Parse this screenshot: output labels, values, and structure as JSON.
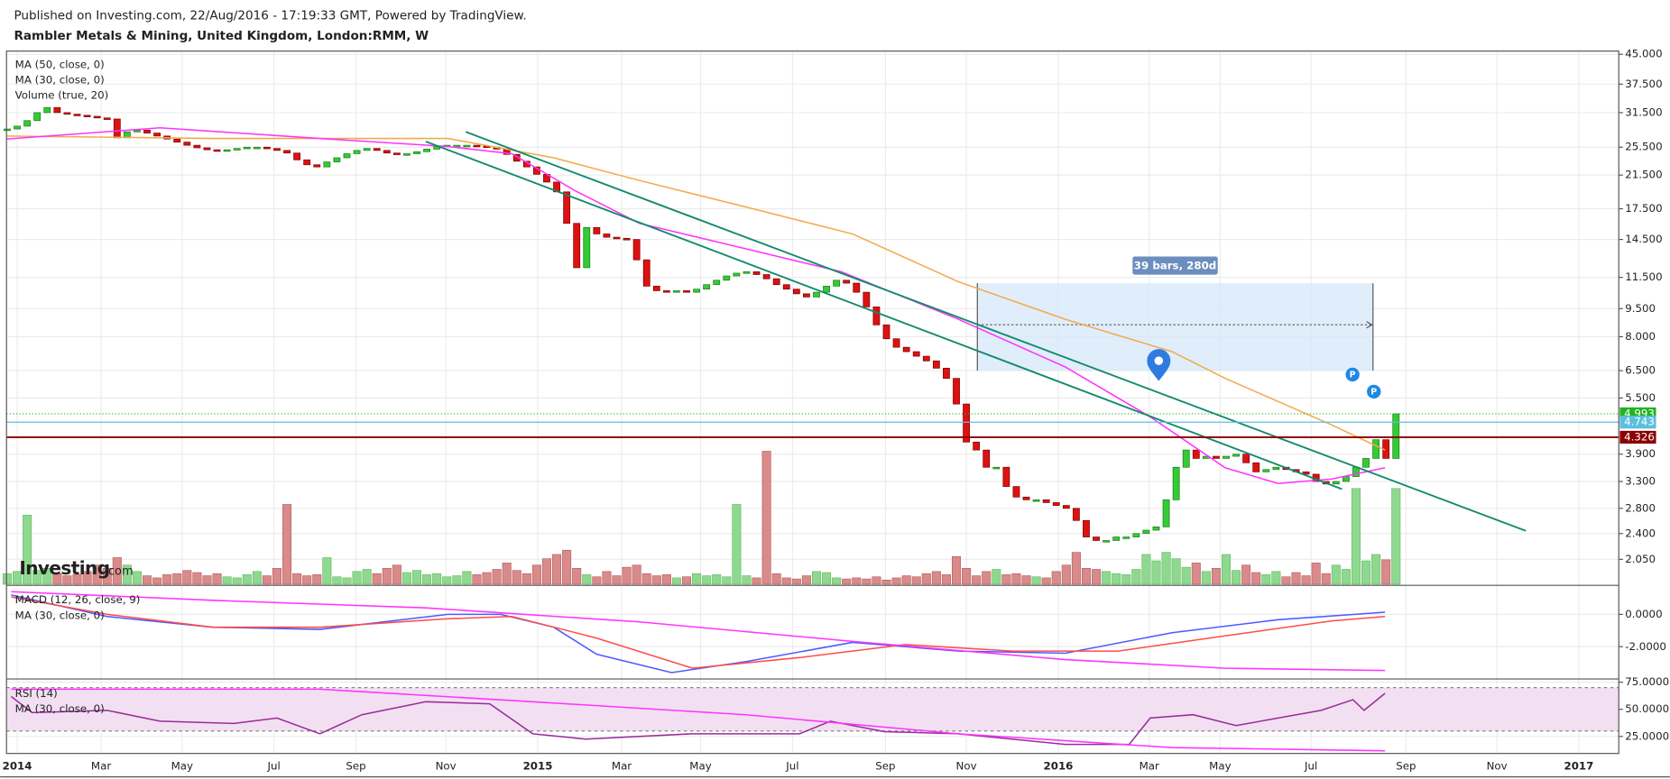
{
  "header": {
    "published": "Published on Investing.com, 22/Aug/2016 - 17:19:33 GMT, Powered by TradingView.",
    "title": "Rambler Metals & Mining, United Kingdom, London:RMM, W",
    "watermark": [
      "Investing",
      ".com"
    ]
  },
  "chart_data": [
    {
      "type": "candlestick",
      "xlim": [
        -1.07,
        160.3
      ],
      "xticks": [
        {
          "value": 0,
          "label": "2014"
        },
        {
          "value": 8.4,
          "label": "Mar"
        },
        {
          "value": 16.5,
          "label": "May"
        },
        {
          "value": 25.7,
          "label": "Jul"
        },
        {
          "value": 33.9,
          "label": "Sep"
        },
        {
          "value": 42.9,
          "label": "Nov"
        },
        {
          "value": 52.1,
          "label": "2015"
        },
        {
          "value": 60.5,
          "label": "Mar"
        },
        {
          "value": 68.4,
          "label": "May"
        },
        {
          "value": 77.6,
          "label": "Jul"
        },
        {
          "value": 86.9,
          "label": "Sep"
        },
        {
          "value": 95,
          "label": "Nov"
        },
        {
          "value": 104.2,
          "label": "2016"
        },
        {
          "value": 113.3,
          "label": "Mar"
        },
        {
          "value": 120.4,
          "label": "May"
        },
        {
          "value": 129.5,
          "label": "Jul"
        },
        {
          "value": 139,
          "label": "Sep"
        },
        {
          "value": 148.1,
          "label": "Nov"
        },
        {
          "value": 156.3,
          "label": "2017"
        }
      ],
      "ylim": [
        1.76,
        45.9
      ],
      "log": true,
      "grid": true,
      "yticks": [
        {
          "value": 45,
          "label": "45.000"
        },
        {
          "value": 37.5,
          "label": "37.500"
        },
        {
          "value": 31.5,
          "label": "31.500"
        },
        {
          "value": 25.5,
          "label": "25.500"
        },
        {
          "value": 21.5,
          "label": "21.500"
        },
        {
          "value": 17.5,
          "label": "17.500"
        },
        {
          "value": 14.5,
          "label": "14.500"
        },
        {
          "value": 11.5,
          "label": "11.500"
        },
        {
          "value": 9.5,
          "label": "9.500"
        },
        {
          "value": 8,
          "label": "8.000"
        },
        {
          "value": 6.5,
          "label": "6.500"
        },
        {
          "value": 5.5,
          "label": "5.500"
        },
        {
          "value": 3.9,
          "label": "3.900"
        },
        {
          "value": 3.3,
          "label": "3.300"
        },
        {
          "value": 2.8,
          "label": "2.800"
        },
        {
          "value": 2.4,
          "label": "2.400"
        },
        {
          "value": 2.05,
          "label": "2.050"
        }
      ],
      "x": [
        -1,
        0,
        1,
        2,
        3,
        4,
        5,
        6,
        7,
        8,
        9,
        10,
        11,
        12,
        13,
        14,
        15,
        16,
        17,
        18,
        19,
        20,
        21,
        22,
        23,
        24,
        25,
        26,
        27,
        28,
        29,
        30,
        31,
        32,
        33,
        34,
        35,
        36,
        37,
        38,
        39,
        40,
        41,
        42,
        43,
        44,
        45,
        46,
        47,
        48,
        49,
        50,
        51,
        52,
        53,
        54,
        55,
        56,
        57,
        58,
        59,
        60,
        61,
        62,
        63,
        64,
        65,
        66,
        67,
        68,
        69,
        70,
        71,
        72,
        73,
        74,
        75,
        76,
        77,
        78,
        79,
        80,
        81,
        82,
        83,
        84,
        85,
        86,
        87,
        88,
        89,
        90,
        91,
        92,
        93,
        94,
        95,
        96,
        97,
        98,
        99,
        100,
        101,
        102,
        103,
        104,
        105,
        106,
        107,
        108,
        109,
        110,
        111,
        112,
        113,
        114,
        115,
        116,
        117,
        118,
        119,
        120,
        121,
        122,
        123,
        124,
        125,
        126,
        127,
        128,
        129,
        130,
        131,
        132,
        133,
        134,
        135,
        136,
        137,
        138
      ],
      "close": [
        28.5,
        29,
        30,
        31.5,
        32.5,
        31.5,
        31.2,
        31,
        30.8,
        30.5,
        30.3,
        27,
        28,
        28.3,
        27.8,
        27.3,
        26.8,
        26.3,
        25.8,
        25.4,
        25.1,
        25,
        25.1,
        25.3,
        25.5,
        25.5,
        25.3,
        25,
        24.6,
        23.6,
        22.9,
        22.6,
        23.3,
        23.9,
        24.5,
        25,
        25.3,
        25,
        24.6,
        24.4,
        24.5,
        24.8,
        25.2,
        25.6,
        25.8,
        25.8,
        25.8,
        25.7,
        25.5,
        25.2,
        24.4,
        23.4,
        22.6,
        21.6,
        20.6,
        19.4,
        16,
        12.2,
        15.6,
        15,
        14.7,
        14.6,
        14.5,
        12.8,
        10.9,
        10.6,
        10.5,
        10.6,
        10.5,
        10.7,
        11,
        11.3,
        11.6,
        11.8,
        11.9,
        11.7,
        11.4,
        11,
        10.7,
        10.4,
        10.2,
        10.5,
        10.9,
        11.3,
        11.1,
        10.5,
        9.6,
        8.6,
        7.9,
        7.5,
        7.3,
        7.1,
        6.9,
        6.6,
        6.2,
        5.3,
        4.2,
        4,
        3.6,
        3.6,
        3.2,
        3,
        2.95,
        2.95,
        2.9,
        2.85,
        2.8,
        2.6,
        2.35,
        2.3,
        2.3,
        2.35,
        2.35,
        2.4,
        2.45,
        2.5,
        2.95,
        3.6,
        4,
        3.8,
        3.85,
        3.8,
        3.85,
        3.9,
        3.7,
        3.5,
        3.55,
        3.6,
        3.55,
        3.5,
        3.45,
        3.3,
        3.25,
        3.3,
        3.4,
        3.6,
        3.8,
        4.26,
        3.8,
        4.99
      ],
      "volume": [
        1,
        1.2,
        6.5,
        1.3,
        1.5,
        1,
        0.8,
        0.9,
        1.2,
        1.8,
        1.5,
        2.5,
        1.8,
        1.2,
        0.8,
        0.6,
        0.9,
        1,
        1.3,
        1.1,
        0.8,
        1,
        0.7,
        0.6,
        0.9,
        1.2,
        0.8,
        1.5,
        7.5,
        1,
        0.8,
        0.9,
        2.5,
        0.7,
        0.6,
        1.2,
        1.4,
        1,
        1.5,
        1.8,
        1.1,
        1.3,
        0.9,
        1,
        0.7,
        0.8,
        1.2,
        0.9,
        1.1,
        1.4,
        2,
        1.3,
        1,
        1.8,
        2.4,
        2.8,
        3.2,
        1.5,
        0.9,
        0.7,
        1.2,
        0.8,
        1.6,
        1.8,
        1,
        0.8,
        0.9,
        0.6,
        0.7,
        1,
        0.8,
        0.9,
        0.7,
        7.5,
        0.8,
        0.6,
        12.5,
        1,
        0.6,
        0.5,
        0.8,
        1.2,
        1.1,
        0.6,
        0.5,
        0.6,
        0.5,
        0.7,
        0.4,
        0.6,
        0.8,
        0.7,
        1,
        1.2,
        0.9,
        2.6,
        1.5,
        0.8,
        1.2,
        1.4,
        0.9,
        1,
        0.8,
        0.7,
        0.6,
        1.2,
        1.8,
        3,
        1.5,
        1.4,
        1.2,
        1,
        0.9,
        1.4,
        2.8,
        2.2,
        3,
        2.4,
        1.6,
        2,
        1.2,
        1.5,
        2.8,
        1.3,
        1.8,
        1.1,
        0.9,
        1.2,
        0.7,
        1.1,
        0.8,
        2,
        1,
        1.8,
        1.4,
        9,
        2.2,
        2.8,
        2.3,
        9
      ],
      "up_color": "#33cc33",
      "down_color": "#dd1111",
      "volume_up_color": "#8fd88f",
      "volume_down_color": "#d98a8a",
      "volume_label": "Volume (true, 20)",
      "series": [
        {
          "name": "MA (50, close, 0)",
          "color": "#f3a94b",
          "x": [
            -1.1,
            19.6,
            43.1,
            53.7,
            62.3,
            72.9,
            83.6,
            94.2,
            104.9,
            115.6,
            120.9,
            131.6,
            136.9
          ],
          "values": [
            27.3,
            26.9,
            26.9,
            23.9,
            20.8,
            17.7,
            15,
            11.2,
            8.9,
            7.3,
            6.2,
            4.66,
            4
          ]
        },
        {
          "name": "MA (30, close, 0)",
          "color": "#ff33ff",
          "x": [
            -1.1,
            14.3,
            30.3,
            43.1,
            49.5,
            55.9,
            62.3,
            72.9,
            82.5,
            94.2,
            104.9,
            113.4,
            120.9,
            126.2,
            131.6,
            136.9
          ],
          "values": [
            26.8,
            28.7,
            26.9,
            25.6,
            24.5,
            19.5,
            16,
            13.7,
            11.9,
            8.9,
            6.65,
            4.9,
            3.59,
            3.26,
            3.35,
            3.59
          ]
        }
      ],
      "trendlines": [
        {
          "color": "#138a6e",
          "x": [
            40.9,
            132.6
          ],
          "y": [
            26.4,
            3.15
          ]
        },
        {
          "color": "#138a6e",
          "x": [
            44.9,
            151
          ],
          "y": [
            28,
            2.44
          ]
        }
      ],
      "range_box": {
        "x": [
          96.1,
          135.7
        ],
        "y": [
          6.5,
          11.1
        ],
        "label": "39 bars, 280d"
      },
      "price_lines": [
        {
          "value": 4.993,
          "label": "4.993",
          "color": "#22b322"
        },
        {
          "value": 4.743,
          "label": "4.743",
          "color": "#5bc0de"
        },
        {
          "value": 4.326,
          "label": "4.326",
          "color": "#8b0000"
        }
      ],
      "markers": [
        "P",
        "P"
      ]
    },
    {
      "type": "line",
      "ylim": [
        -3.93,
        1.73
      ],
      "yticks": [
        {
          "value": 0,
          "label": "0.0000"
        },
        {
          "value": -2,
          "label": "-2.0000"
        }
      ],
      "series": [
        {
          "name": "MACD (12, 26, close, 9)",
          "color": "#4a5cff",
          "x": [
            -0.6,
            9,
            19.6,
            30.3,
            43.1,
            48.4,
            53.7,
            58,
            65.5,
            72.9,
            83.6,
            94.2,
            104.9,
            115.6,
            126.2,
            136.9
          ],
          "values": [
            1.2,
            -0.13,
            -0.8,
            -0.93,
            0,
            0,
            -0.8,
            -2.47,
            -3.6,
            -2.93,
            -1.73,
            -2.27,
            -2.4,
            -1.13,
            -0.33,
            0.13
          ]
        },
        {
          "color": "#ff4c4c",
          "x": [
            -0.6,
            9,
            19.6,
            30.3,
            43.1,
            49.5,
            58,
            67.6,
            78.3,
            88.9,
            99.6,
            110.2,
            120.9,
            131.6,
            136.9
          ],
          "values": [
            1.07,
            0,
            -0.8,
            -0.8,
            -0.27,
            -0.13,
            -1.47,
            -3.33,
            -2.67,
            -1.87,
            -2.27,
            -2.27,
            -1.33,
            -0.4,
            -0.13
          ]
        },
        {
          "name": "MA (30, close, 0)",
          "color": "#ff33ff",
          "x": [
            -0.6,
            19.6,
            40.9,
            62.3,
            83.6,
            104.9,
            120.9,
            136.9
          ],
          "values": [
            1.4,
            0.87,
            0.4,
            -0.47,
            -1.67,
            -2.8,
            -3.33,
            -3.47
          ]
        }
      ]
    },
    {
      "type": "line",
      "ylim": [
        9.3,
        77
      ],
      "yticks": [
        {
          "value": 75,
          "label": "75.0000"
        },
        {
          "value": 50,
          "label": "50.0000"
        },
        {
          "value": 25,
          "label": "25.0000"
        }
      ],
      "band": [
        30,
        70
      ],
      "band_color": "#f2e0f2",
      "series": [
        {
          "name": "RSI (14)",
          "color": "#9a2b9a",
          "x": [
            -0.6,
            1.5,
            9,
            14.3,
            21.7,
            26,
            30.3,
            34.5,
            40.9,
            47.3,
            51.6,
            56.9,
            67.6,
            78.3,
            81.4,
            86.8,
            94.2,
            104.9,
            111.3,
            113.4,
            117.7,
            122,
            126.2,
            130.5,
            133.7,
            134.8,
            136.9
          ],
          "values": [
            61.8,
            47,
            49,
            39,
            37,
            42,
            27.5,
            45,
            57,
            55,
            27.5,
            22.5,
            27.5,
            27.5,
            39,
            29.4,
            27.5,
            17.6,
            17.6,
            42,
            45,
            35,
            42,
            49,
            58.8,
            49,
            64.7
          ]
        },
        {
          "name": "MA (30, close, 0)",
          "color": "#ff33ff",
          "x": [
            -0.6,
            30.3,
            51.6,
            72.9,
            94.2,
            115.6,
            136.9
          ],
          "values": [
            68.6,
            68.6,
            57,
            45,
            27.5,
            14.7,
            11.8
          ]
        }
      ]
    }
  ]
}
